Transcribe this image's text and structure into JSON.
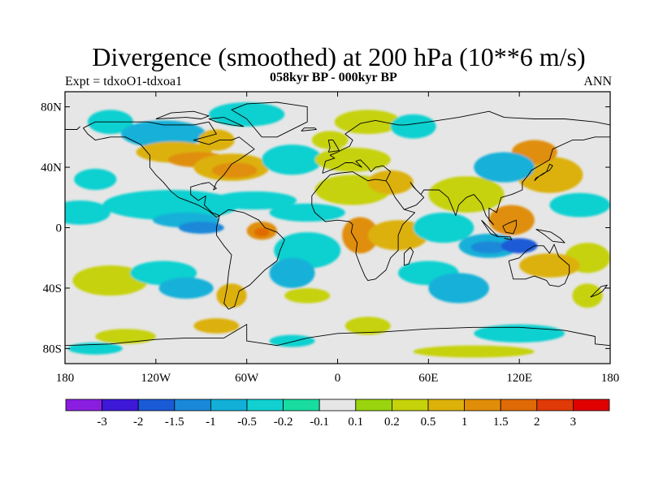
{
  "title": "Divergence (smoothed) at 200 hPa (10**6 m/s)",
  "subtitle": "058kyr BP - 000kyr BP",
  "experiment": "Expt = tdxoO1-tdxoa1",
  "season": "ANN",
  "map": {
    "projection": "cylindrical-equidistant",
    "lon_range": [
      -180,
      180
    ],
    "lat_range": [
      -90,
      90
    ],
    "background_color": "#e6e6e6",
    "lat_ticks": [
      {
        "value": 80,
        "label": "80N"
      },
      {
        "value": 40,
        "label": "40N"
      },
      {
        "value": 0,
        "label": "0"
      },
      {
        "value": -40,
        "label": "40S"
      },
      {
        "value": -80,
        "label": "80S"
      }
    ],
    "lon_ticks": [
      {
        "value": -180,
        "label": "180"
      },
      {
        "value": -120,
        "label": "120W"
      },
      {
        "value": -60,
        "label": "60W"
      },
      {
        "value": 0,
        "label": "0"
      },
      {
        "value": 60,
        "label": "60E"
      },
      {
        "value": 120,
        "label": "120E"
      },
      {
        "value": 180,
        "label": "180"
      }
    ]
  },
  "colorbar": {
    "colors": [
      "#8a1ee0",
      "#3d18d8",
      "#1a5ad6",
      "#1a88d8",
      "#12b0d8",
      "#10d0d0",
      "#18dca0",
      "#e6e6e6",
      "#9ad40e",
      "#c6d20a",
      "#dcb10a",
      "#e08e08",
      "#e06a06",
      "#e03a06",
      "#e00000"
    ],
    "labels": [
      "-3",
      "-2",
      "-1.5",
      "-1",
      "-0.5",
      "-0.2",
      "-0.1",
      "0.1",
      "0.2",
      "0.5",
      "1",
      "1.5",
      "2",
      "3"
    ]
  },
  "features": [
    {
      "lon": -150,
      "lat": 70,
      "rx": 15,
      "ry": 8,
      "level": 5
    },
    {
      "lon": -115,
      "lat": 62,
      "rx": 28,
      "ry": 9,
      "level": 4
    },
    {
      "lon": -160,
      "lat": 32,
      "rx": 14,
      "ry": 7,
      "level": 5
    },
    {
      "lon": -80,
      "lat": 58,
      "rx": 12,
      "ry": 7,
      "level": 10
    },
    {
      "lon": -108,
      "lat": 50,
      "rx": 25,
      "ry": 7,
      "level": 10
    },
    {
      "lon": -92,
      "lat": 45,
      "rx": 20,
      "ry": 5,
      "level": 11
    },
    {
      "lon": -70,
      "lat": 40,
      "rx": 25,
      "ry": 9,
      "level": 10
    },
    {
      "lon": -68,
      "lat": 38,
      "rx": 15,
      "ry": 5,
      "level": 11
    },
    {
      "lon": -60,
      "lat": 75,
      "rx": 25,
      "ry": 8,
      "level": 5
    },
    {
      "lon": -30,
      "lat": 45,
      "rx": 20,
      "ry": 10,
      "level": 5
    },
    {
      "lon": -5,
      "lat": 58,
      "rx": 12,
      "ry": 6,
      "level": 9
    },
    {
      "lon": 20,
      "lat": 70,
      "rx": 22,
      "ry": 8,
      "level": 9
    },
    {
      "lon": 50,
      "lat": 67,
      "rx": 15,
      "ry": 8,
      "level": 5
    },
    {
      "lon": 10,
      "lat": 45,
      "rx": 25,
      "ry": 8,
      "level": 9
    },
    {
      "lon": -170,
      "lat": 10,
      "rx": 20,
      "ry": 8,
      "level": 5
    },
    {
      "lon": -110,
      "lat": 15,
      "rx": 45,
      "ry": 10,
      "level": 5
    },
    {
      "lon": -100,
      "lat": 5,
      "rx": 22,
      "ry": 5,
      "level": 4
    },
    {
      "lon": -90,
      "lat": 0,
      "rx": 15,
      "ry": 4,
      "level": 3
    },
    {
      "lon": -55,
      "lat": 18,
      "rx": 28,
      "ry": 6,
      "level": 5
    },
    {
      "lon": -20,
      "lat": 10,
      "rx": 25,
      "ry": 6,
      "level": 5
    },
    {
      "lon": -50,
      "lat": -2,
      "rx": 10,
      "ry": 6,
      "level": 11
    },
    {
      "lon": -50,
      "lat": -3,
      "rx": 5,
      "ry": 3,
      "level": 12
    },
    {
      "lon": -20,
      "lat": -15,
      "rx": 22,
      "ry": 12,
      "level": 5
    },
    {
      "lon": -30,
      "lat": -30,
      "rx": 15,
      "ry": 10,
      "level": 4
    },
    {
      "lon": 15,
      "lat": -5,
      "rx": 12,
      "ry": 12,
      "level": 11
    },
    {
      "lon": 40,
      "lat": -5,
      "rx": 20,
      "ry": 10,
      "level": 10
    },
    {
      "lon": 10,
      "lat": 25,
      "rx": 25,
      "ry": 10,
      "level": 9
    },
    {
      "lon": 35,
      "lat": 30,
      "rx": 15,
      "ry": 8,
      "level": 10
    },
    {
      "lon": 70,
      "lat": 0,
      "rx": 20,
      "ry": 10,
      "level": 5
    },
    {
      "lon": 85,
      "lat": 22,
      "rx": 25,
      "ry": 12,
      "level": 9
    },
    {
      "lon": 100,
      "lat": -12,
      "rx": 20,
      "ry": 8,
      "level": 4
    },
    {
      "lon": 100,
      "lat": -13,
      "rx": 12,
      "ry": 4,
      "level": 3
    },
    {
      "lon": 120,
      "lat": -12,
      "rx": 12,
      "ry": 5,
      "level": 2
    },
    {
      "lon": 115,
      "lat": 5,
      "rx": 15,
      "ry": 10,
      "level": 11
    },
    {
      "lon": 140,
      "lat": 35,
      "rx": 22,
      "ry": 12,
      "level": 10
    },
    {
      "lon": 130,
      "lat": 50,
      "rx": 15,
      "ry": 8,
      "level": 11
    },
    {
      "lon": 110,
      "lat": 40,
      "rx": 20,
      "ry": 10,
      "level": 4
    },
    {
      "lon": 160,
      "lat": 15,
      "rx": 20,
      "ry": 8,
      "level": 5
    },
    {
      "lon": 165,
      "lat": -20,
      "rx": 15,
      "ry": 10,
      "level": 9
    },
    {
      "lon": 140,
      "lat": -25,
      "rx": 20,
      "ry": 8,
      "level": 10
    },
    {
      "lon": 165,
      "lat": -45,
      "rx": 10,
      "ry": 8,
      "level": 9
    },
    {
      "lon": -150,
      "lat": -35,
      "rx": 25,
      "ry": 10,
      "level": 9
    },
    {
      "lon": -115,
      "lat": -30,
      "rx": 22,
      "ry": 8,
      "level": 5
    },
    {
      "lon": -100,
      "lat": -40,
      "rx": 18,
      "ry": 7,
      "level": 4
    },
    {
      "lon": -70,
      "lat": -45,
      "rx": 10,
      "ry": 8,
      "level": 10
    },
    {
      "lon": -20,
      "lat": -45,
      "rx": 15,
      "ry": 5,
      "level": 9
    },
    {
      "lon": 60,
      "lat": -30,
      "rx": 20,
      "ry": 8,
      "level": 5
    },
    {
      "lon": 80,
      "lat": -40,
      "rx": 20,
      "ry": 10,
      "level": 4
    },
    {
      "lon": -140,
      "lat": -72,
      "rx": 20,
      "ry": 5,
      "level": 9
    },
    {
      "lon": -80,
      "lat": -65,
      "rx": 15,
      "ry": 5,
      "level": 10
    },
    {
      "lon": -30,
      "lat": -75,
      "rx": 15,
      "ry": 4,
      "level": 5
    },
    {
      "lon": 20,
      "lat": -65,
      "rx": 15,
      "ry": 6,
      "level": 9
    },
    {
      "lon": 120,
      "lat": -70,
      "rx": 30,
      "ry": 6,
      "level": 5
    },
    {
      "lon": -160,
      "lat": -80,
      "rx": 18,
      "ry": 4,
      "level": 5
    },
    {
      "lon": 90,
      "lat": -82,
      "rx": 40,
      "ry": 4,
      "level": 9
    }
  ],
  "coastlines": [
    [
      [
        -168,
        66
      ],
      [
        -160,
        70
      ],
      [
        -140,
        70
      ],
      [
        -125,
        70
      ],
      [
        -115,
        68
      ],
      [
        -95,
        68
      ],
      [
        -85,
        70
      ],
      [
        -80,
        62
      ],
      [
        -95,
        58
      ],
      [
        -85,
        55
      ],
      [
        -78,
        58
      ],
      [
        -70,
        58
      ],
      [
        -65,
        60
      ],
      [
        -55,
        52
      ],
      [
        -65,
        45
      ],
      [
        -70,
        42
      ],
      [
        -75,
        35
      ],
      [
        -80,
        30
      ],
      [
        -82,
        25
      ],
      [
        -80,
        26
      ],
      [
        -85,
        30
      ],
      [
        -90,
        29
      ],
      [
        -97,
        27
      ],
      [
        -97,
        22
      ],
      [
        -92,
        18
      ],
      [
        -87,
        21
      ],
      [
        -88,
        15
      ],
      [
        -83,
        10
      ],
      [
        -78,
        8
      ],
      [
        -80,
        7
      ],
      [
        -85,
        11
      ],
      [
        -92,
        15
      ],
      [
        -105,
        20
      ],
      [
        -110,
        24
      ],
      [
        -115,
        30
      ],
      [
        -120,
        35
      ],
      [
        -124,
        40
      ],
      [
        -124,
        48
      ],
      [
        -130,
        55
      ],
      [
        -140,
        60
      ],
      [
        -150,
        60
      ],
      [
        -160,
        58
      ],
      [
        -165,
        62
      ],
      [
        -168,
        66
      ]
    ],
    [
      [
        -78,
        8
      ],
      [
        -72,
        12
      ],
      [
        -62,
        10
      ],
      [
        -52,
        5
      ],
      [
        -48,
        0
      ],
      [
        -40,
        -3
      ],
      [
        -35,
        -8
      ],
      [
        -38,
        -15
      ],
      [
        -40,
        -22
      ],
      [
        -48,
        -28
      ],
      [
        -55,
        -35
      ],
      [
        -58,
        -38
      ],
      [
        -65,
        -42
      ],
      [
        -68,
        -52
      ],
      [
        -72,
        -54
      ],
      [
        -75,
        -50
      ],
      [
        -73,
        -40
      ],
      [
        -72,
        -30
      ],
      [
        -70,
        -18
      ],
      [
        -75,
        -12
      ],
      [
        -80,
        -5
      ],
      [
        -80,
        0
      ],
      [
        -78,
        8
      ]
    ],
    [
      [
        -50,
        60
      ],
      [
        -40,
        60
      ],
      [
        -20,
        70
      ],
      [
        -20,
        80
      ],
      [
        -40,
        83
      ],
      [
        -60,
        82
      ],
      [
        -70,
        78
      ],
      [
        -60,
        72
      ],
      [
        -50,
        60
      ]
    ],
    [
      [
        -10,
        36
      ],
      [
        -8,
        44
      ],
      [
        -2,
        46
      ],
      [
        -5,
        48
      ],
      [
        0,
        50
      ],
      [
        8,
        54
      ],
      [
        10,
        58
      ],
      [
        5,
        62
      ],
      [
        15,
        69
      ],
      [
        25,
        71
      ],
      [
        40,
        68
      ],
      [
        45,
        68
      ],
      [
        60,
        70
      ],
      [
        80,
        73
      ],
      [
        100,
        77
      ],
      [
        110,
        73
      ],
      [
        130,
        72
      ],
      [
        150,
        72
      ],
      [
        170,
        70
      ],
      [
        180,
        68
      ]
    ],
    [
      [
        -180,
        65
      ],
      [
        -172,
        65
      ],
      [
        -170,
        67
      ]
    ],
    [
      [
        180,
        60
      ],
      [
        170,
        60
      ],
      [
        162,
        58
      ],
      [
        155,
        58
      ],
      [
        142,
        52
      ],
      [
        140,
        45
      ],
      [
        135,
        42
      ],
      [
        128,
        38
      ],
      [
        126,
        35
      ],
      [
        122,
        30
      ],
      [
        122,
        25
      ],
      [
        115,
        22
      ],
      [
        108,
        20
      ],
      [
        105,
        10
      ],
      [
        100,
        13
      ],
      [
        100,
        5
      ],
      [
        103,
        2
      ],
      [
        98,
        8
      ],
      [
        95,
        16
      ],
      [
        90,
        22
      ],
      [
        85,
        20
      ],
      [
        80,
        15
      ],
      [
        78,
        8
      ],
      [
        73,
        20
      ],
      [
        67,
        25
      ],
      [
        57,
        25
      ],
      [
        55,
        22
      ],
      [
        52,
        25
      ],
      [
        48,
        30
      ],
      [
        50,
        27
      ],
      [
        57,
        20
      ],
      [
        52,
        15
      ],
      [
        44,
        12
      ],
      [
        38,
        20
      ],
      [
        34,
        28
      ],
      [
        32,
        31
      ],
      [
        25,
        32
      ],
      [
        20,
        31
      ],
      [
        10,
        37
      ],
      [
        0,
        36
      ],
      [
        -5,
        35
      ],
      [
        -10,
        30
      ],
      [
        -17,
        21
      ],
      [
        -17,
        15
      ],
      [
        -15,
        10
      ],
      [
        -8,
        4
      ],
      [
        0,
        5
      ],
      [
        8,
        4
      ],
      [
        10,
        2
      ],
      [
        9,
        -3
      ],
      [
        13,
        -10
      ],
      [
        12,
        -17
      ],
      [
        15,
        -25
      ],
      [
        18,
        -32
      ],
      [
        20,
        -35
      ],
      [
        25,
        -34
      ],
      [
        32,
        -28
      ],
      [
        35,
        -20
      ],
      [
        40,
        -15
      ],
      [
        40,
        -5
      ],
      [
        43,
        2
      ],
      [
        51,
        10
      ],
      [
        44,
        12
      ]
    ],
    [
      [
        32,
        31
      ],
      [
        35,
        37
      ],
      [
        30,
        41
      ],
      [
        25,
        40
      ],
      [
        22,
        37
      ],
      [
        20,
        40
      ],
      [
        15,
        45
      ],
      [
        12,
        44
      ],
      [
        16,
        40
      ],
      [
        10,
        43
      ],
      [
        5,
        43
      ],
      [
        0,
        40
      ],
      [
        -10,
        36
      ]
    ],
    [
      [
        113,
        -22
      ],
      [
        114,
        -26
      ],
      [
        116,
        -34
      ],
      [
        124,
        -34
      ],
      [
        130,
        -32
      ],
      [
        138,
        -35
      ],
      [
        140,
        -38
      ],
      [
        146,
        -39
      ],
      [
        150,
        -37
      ],
      [
        153,
        -30
      ],
      [
        153,
        -25
      ],
      [
        146,
        -19
      ],
      [
        143,
        -11
      ],
      [
        140,
        -17
      ],
      [
        136,
        -12
      ],
      [
        130,
        -12
      ],
      [
        125,
        -15
      ],
      [
        120,
        -20
      ],
      [
        113,
        -22
      ]
    ],
    [
      [
        95,
        5
      ],
      [
        102,
        -2
      ],
      [
        106,
        -6
      ],
      [
        101,
        -4
      ],
      [
        95,
        5
      ]
    ],
    [
      [
        110,
        -7
      ],
      [
        115,
        -8
      ],
      [
        114,
        -6
      ],
      [
        106,
        -6
      ]
    ],
    [
      [
        109,
        1
      ],
      [
        113,
        3
      ],
      [
        118,
        5
      ],
      [
        118,
        1
      ],
      [
        116,
        -4
      ],
      [
        111,
        -3
      ],
      [
        109,
        1
      ]
    ],
    [
      [
        131,
        -1
      ],
      [
        141,
        -3
      ],
      [
        147,
        -7
      ],
      [
        150,
        -10
      ],
      [
        142,
        -9
      ],
      [
        137,
        -5
      ],
      [
        131,
        -1
      ]
    ],
    [
      [
        130,
        31
      ],
      [
        133,
        34
      ],
      [
        136,
        36
      ],
      [
        140,
        38
      ],
      [
        142,
        41
      ],
      [
        140,
        42
      ],
      [
        138,
        37
      ],
      [
        135,
        35
      ],
      [
        131,
        33
      ],
      [
        130,
        31
      ]
    ],
    [
      [
        167,
        -46
      ],
      [
        172,
        -41
      ],
      [
        174,
        -39
      ],
      [
        178,
        -38
      ],
      [
        175,
        -42
      ],
      [
        172,
        -44
      ],
      [
        167,
        -46
      ]
    ],
    [
      [
        44,
        -25
      ],
      [
        47,
        -24
      ],
      [
        50,
        -16
      ],
      [
        48,
        -13
      ],
      [
        44,
        -17
      ],
      [
        44,
        -25
      ]
    ],
    [
      [
        -6,
        50
      ],
      [
        -5,
        53
      ],
      [
        -6,
        58
      ],
      [
        -3,
        58
      ],
      [
        0,
        53
      ],
      [
        1,
        51
      ],
      [
        -6,
        50
      ]
    ],
    [
      [
        -24,
        64
      ],
      [
        -14,
        65
      ],
      [
        -15,
        66
      ],
      [
        -22,
        66
      ],
      [
        -24,
        64
      ]
    ],
    [
      [
        -180,
        -78
      ],
      [
        -150,
        -77
      ],
      [
        -120,
        -74
      ],
      [
        -100,
        -73
      ],
      [
        -75,
        -73
      ],
      [
        -60,
        -64
      ],
      [
        -60,
        -75
      ],
      [
        -40,
        -78
      ],
      [
        -20,
        -73
      ],
      [
        0,
        -70
      ],
      [
        30,
        -69
      ],
      [
        60,
        -67
      ],
      [
        90,
        -66
      ],
      [
        120,
        -66
      ],
      [
        150,
        -68
      ],
      [
        170,
        -72
      ],
      [
        170,
        -77
      ],
      [
        180,
        -78
      ]
    ],
    [
      [
        -120,
        72
      ],
      [
        -100,
        73
      ],
      [
        -90,
        72
      ],
      [
        -85,
        74
      ],
      [
        -95,
        77
      ],
      [
        -110,
        76
      ],
      [
        -120,
        72
      ]
    ],
    [
      [
        -80,
        70
      ],
      [
        -70,
        68
      ],
      [
        -62,
        67
      ],
      [
        -75,
        73
      ],
      [
        -85,
        72
      ],
      [
        -80,
        70
      ]
    ]
  ]
}
